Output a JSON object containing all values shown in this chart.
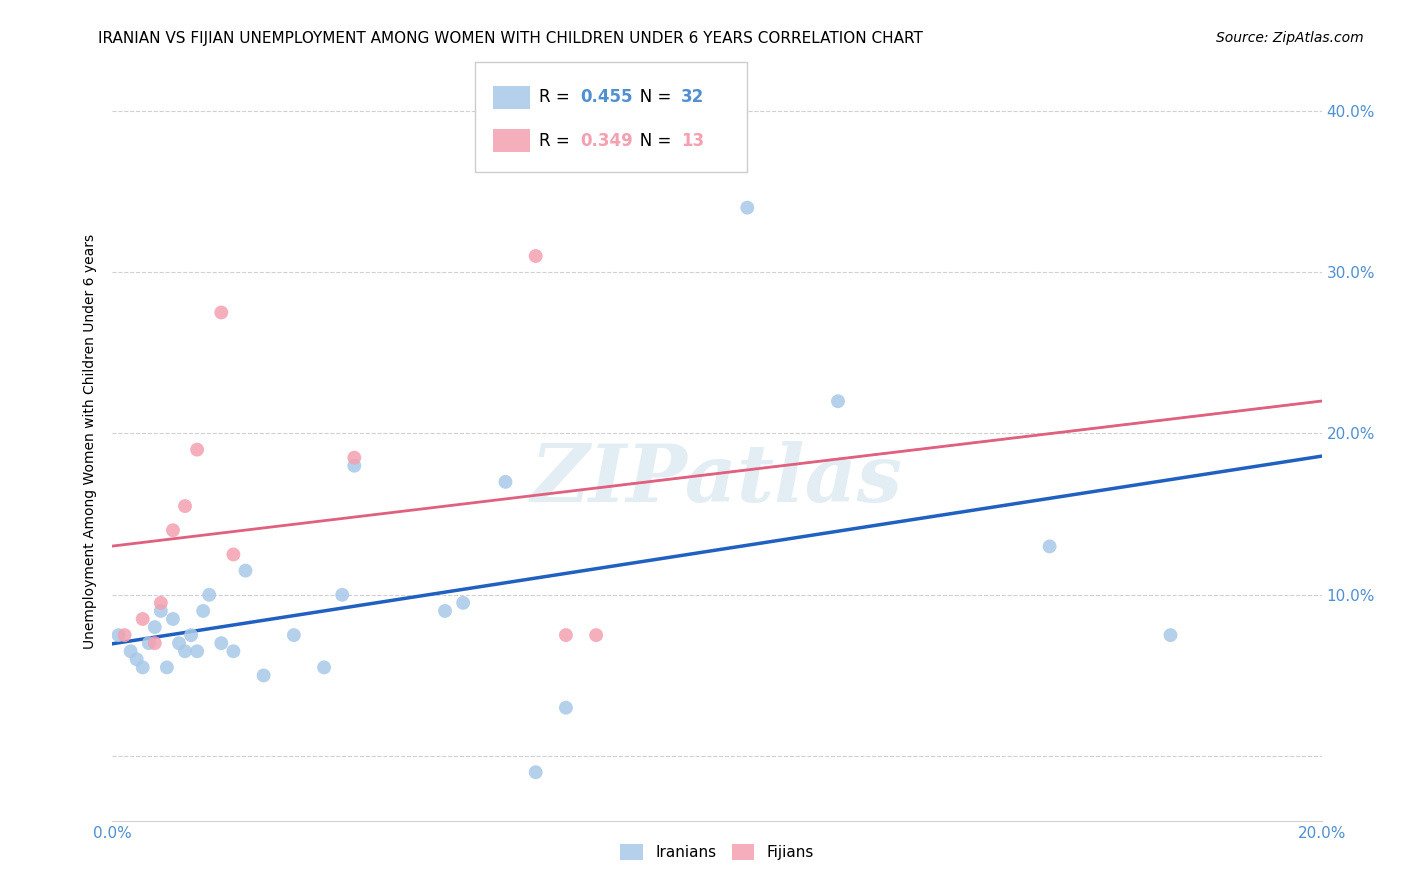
{
  "title": "IRANIAN VS FIJIAN UNEMPLOYMENT AMONG WOMEN WITH CHILDREN UNDER 6 YEARS CORRELATION CHART",
  "source": "Source: ZipAtlas.com",
  "ylabel": "Unemployment Among Women with Children Under 6 years",
  "xlabel": "",
  "legend_label1": "Iranians",
  "legend_label2": "Fijians",
  "R1": 0.455,
  "N1": 32,
  "R2": 0.349,
  "N2": 13,
  "watermark": "ZIPatlas",
  "blue_color": "#a8c8e8",
  "pink_color": "#f4a0b0",
  "blue_line_color": "#2060c0",
  "pink_line_color": "#e06080",
  "pink_dash_color": "#e8a0b0",
  "axis_color": "#5090d0",
  "xlim": [
    0.0,
    0.2
  ],
  "ylim": [
    -0.04,
    0.43
  ],
  "xticks": [
    0.0,
    0.05,
    0.1,
    0.15,
    0.2
  ],
  "yticks": [
    0.0,
    0.1,
    0.2,
    0.3,
    0.4
  ],
  "blue_x": [
    0.001,
    0.003,
    0.004,
    0.005,
    0.006,
    0.007,
    0.008,
    0.009,
    0.01,
    0.011,
    0.012,
    0.013,
    0.014,
    0.015,
    0.016,
    0.018,
    0.02,
    0.022,
    0.025,
    0.03,
    0.035,
    0.038,
    0.04,
    0.055,
    0.058,
    0.065,
    0.07,
    0.075,
    0.105,
    0.12,
    0.155,
    0.175
  ],
  "blue_y": [
    0.075,
    0.065,
    0.06,
    0.055,
    0.07,
    0.08,
    0.09,
    0.055,
    0.085,
    0.07,
    0.065,
    0.075,
    0.065,
    0.09,
    0.1,
    0.07,
    0.065,
    0.115,
    0.05,
    0.075,
    0.055,
    0.1,
    0.18,
    0.09,
    0.095,
    0.17,
    -0.01,
    0.03,
    0.34,
    0.22,
    0.13,
    0.075
  ],
  "pink_x": [
    0.002,
    0.005,
    0.007,
    0.008,
    0.01,
    0.012,
    0.014,
    0.018,
    0.02,
    0.04,
    0.07,
    0.075,
    0.08
  ],
  "pink_y": [
    0.075,
    0.085,
    0.07,
    0.095,
    0.14,
    0.155,
    0.19,
    0.275,
    0.125,
    0.185,
    0.31,
    0.075,
    0.075
  ],
  "blue_dot_size": 100,
  "pink_dot_size": 100,
  "grid_color": "#d0d0d0",
  "bg_color": "#ffffff",
  "title_fontsize": 11,
  "label_fontsize": 10,
  "tick_fontsize": 11,
  "legend_fontsize": 12,
  "source_fontsize": 10
}
